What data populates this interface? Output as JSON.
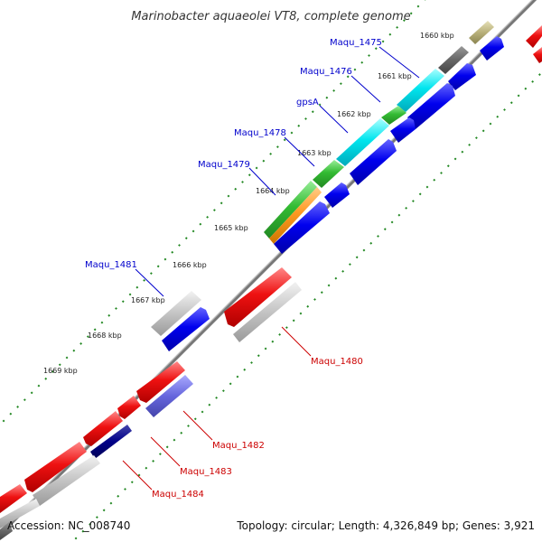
{
  "title": "Marinobacter aquaeolei VT8, complete genome",
  "footer": {
    "accession": "Accession: NC_008740",
    "summary": "Topology: circular; Length: 4,326,849 bp; Genes: 3,921"
  },
  "ticks": [
    "1660 kbp",
    "1661 kbp",
    "1662 kbp",
    "1663 kbp",
    "1664 kbp",
    "1665 kbp",
    "1666 kbp",
    "1667 kbp",
    "1668 kbp",
    "1669 kbp"
  ],
  "labels": {
    "maqu_1475": "Maqu_1475",
    "maqu_1476": "Maqu_1476",
    "gpsA": "gpsA",
    "maqu_1478": "Maqu_1478",
    "maqu_1479": "Maqu_1479",
    "maqu_1481": "Maqu_1481",
    "maqu_1480": "Maqu_1480",
    "maqu_1482": "Maqu_1482",
    "maqu_1483": "Maqu_1483",
    "maqu_1484": "Maqu_1484"
  },
  "colors": {
    "backbone": "#777777",
    "forward_cds": "#0000ee",
    "reverse_cds": "#ee1111",
    "rna_cyan": "#00e5ee",
    "green": "#33bb33",
    "orange": "#ff9922",
    "olive": "#b8b07a",
    "gray": "#bbbbbb",
    "dark_gray": "#666666",
    "purple": "#6666dd",
    "navy": "#000088",
    "tick": "#228822",
    "label_forward": "#0000cc",
    "label_reverse": "#cc0000"
  }
}
